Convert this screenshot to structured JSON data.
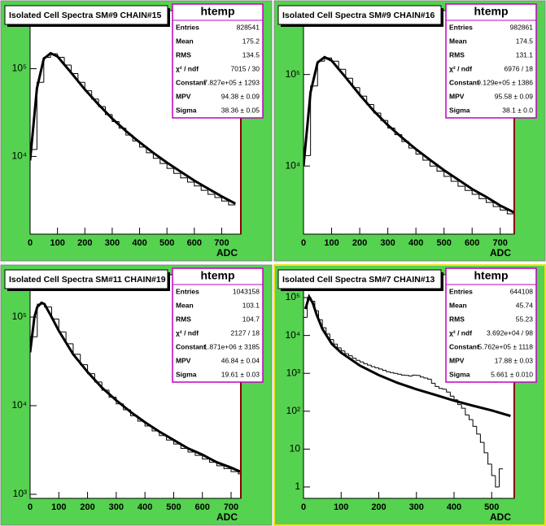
{
  "chart_data": [
    {
      "type": "histogram",
      "title": "Isolated Cell Spectra SM#9 CHAIN#15",
      "stats": {
        "title": "htemp",
        "rows": [
          [
            "Entries",
            "828541"
          ],
          [
            "Mean",
            "175.2"
          ],
          [
            "RMS",
            "134.5"
          ],
          [
            "χ² / ndf",
            "7015 / 30"
          ],
          [
            "Constant",
            "7.827e+05 ± 1293"
          ],
          [
            "MPV",
            "94.38 ± 0.09"
          ],
          [
            "Sigma",
            "38.36 ± 0.05"
          ]
        ]
      },
      "bins": [
        0,
        25,
        50,
        75,
        100,
        125,
        150,
        175,
        200,
        225,
        250,
        275,
        300,
        325,
        350,
        375,
        400,
        425,
        450,
        475,
        500,
        525,
        550,
        575,
        600,
        625,
        650,
        675,
        700,
        725,
        750
      ],
      "values": [
        12000,
        70000,
        135000,
        148000,
        135000,
        110000,
        88000,
        70000,
        56000,
        45000,
        37000,
        30000,
        25000,
        21000,
        17500,
        15000,
        12800,
        11000,
        9500,
        8300,
        7300,
        6400,
        5700,
        5100,
        4600,
        4100,
        3700,
        3400,
        3100,
        2800
      ],
      "fit": {
        "x": [
          0,
          25,
          50,
          75,
          100,
          150,
          200,
          250,
          300,
          350,
          400,
          450,
          500,
          550,
          600,
          650,
          700,
          750
        ],
        "values": [
          9000,
          60000,
          130000,
          150000,
          138000,
          90000,
          58000,
          39000,
          27000,
          19500,
          14500,
          11000,
          8500,
          6700,
          5300,
          4300,
          3500,
          2900
        ]
      },
      "xlabel": "ADC",
      "xlim": [
        0,
        770
      ],
      "ylim": [
        1300,
        460000
      ],
      "log_y": true,
      "xticks": [
        0,
        100,
        200,
        300,
        400,
        500,
        600,
        700
      ],
      "yticks": [
        {
          "value": 10000,
          "label": "10⁴"
        },
        {
          "value": 100000,
          "label": "10⁵"
        }
      ]
    },
    {
      "type": "histogram",
      "title": "Isolated Cell Spectra SM#9 CHAIN#16",
      "stats": {
        "title": "htemp",
        "rows": [
          [
            "Entries",
            "982861"
          ],
          [
            "Mean",
            "174.5"
          ],
          [
            "RMS",
            "131.1"
          ],
          [
            "χ² / ndf",
            "6976 / 18"
          ],
          [
            "Constant",
            "9.129e+05 ± 1386"
          ],
          [
            "MPV",
            "95.58 ± 0.09"
          ],
          [
            "Sigma",
            "38.1 ± 0.0"
          ]
        ]
      },
      "bins": [
        0,
        25,
        50,
        75,
        100,
        125,
        150,
        175,
        200,
        225,
        250,
        275,
        300,
        325,
        350,
        375,
        400,
        425,
        450,
        475,
        500,
        525,
        550,
        575,
        600,
        625,
        650,
        675,
        700,
        725,
        750
      ],
      "values": [
        13000,
        75000,
        140000,
        152000,
        140000,
        114000,
        91000,
        72000,
        58000,
        47000,
        38000,
        31500,
        26000,
        22000,
        18500,
        15700,
        13500,
        11600,
        10000,
        8800,
        7700,
        6800,
        6000,
        5400,
        4900,
        4400,
        4000,
        3600,
        3300,
        3000
      ],
      "fit": {
        "x": [
          0,
          25,
          50,
          75,
          100,
          150,
          200,
          250,
          300,
          350,
          400,
          450,
          500,
          550,
          600,
          650,
          700,
          750
        ],
        "values": [
          10000,
          64000,
          135000,
          155000,
          142000,
          93000,
          60000,
          40000,
          28000,
          20500,
          15300,
          11700,
          9000,
          7100,
          5600,
          4600,
          3700,
          3100
        ]
      },
      "xlabel": "ADC",
      "xlim": [
        0,
        750
      ],
      "ylim": [
        1800,
        500000
      ],
      "log_y": true,
      "xticks": [
        0,
        100,
        200,
        300,
        400,
        500,
        600,
        700
      ],
      "yticks": [
        {
          "value": 10000,
          "label": "10⁴"
        },
        {
          "value": 100000,
          "label": "10⁵"
        }
      ]
    },
    {
      "type": "histogram",
      "title": "Isolated Cell Spectra SM#11 CHAIN#19",
      "stats": {
        "title": "htemp",
        "rows": [
          [
            "Entries",
            "1043158"
          ],
          [
            "Mean",
            "103.1"
          ],
          [
            "RMS",
            "104.7"
          ],
          [
            "χ² / ndf",
            "2127 / 18"
          ],
          [
            "Constant",
            "1.871e+06 ± 3185"
          ],
          [
            "MPV",
            "46.84 ± 0.04"
          ],
          [
            "Sigma",
            "19.61 ± 0.03"
          ]
        ]
      },
      "bins": [
        0,
        25,
        50,
        75,
        100,
        125,
        150,
        175,
        200,
        225,
        250,
        275,
        300,
        325,
        350,
        375,
        400,
        425,
        450,
        475,
        500,
        525,
        550,
        575,
        600,
        625,
        650,
        675,
        700,
        725,
        750
      ],
      "values": [
        60000,
        140000,
        130000,
        95000,
        68000,
        50000,
        38000,
        29000,
        23000,
        18500,
        15000,
        12500,
        10500,
        9000,
        7700,
        6700,
        5900,
        5200,
        4600,
        4100,
        3700,
        3300,
        3000,
        2750,
        2500,
        2300,
        2100,
        1950,
        1800,
        1700
      ],
      "fit": {
        "x": [
          0,
          15,
          25,
          40,
          50,
          75,
          100,
          150,
          200,
          250,
          300,
          350,
          400,
          450,
          500,
          550,
          600,
          650,
          700,
          750
        ],
        "values": [
          40000,
          100000,
          130000,
          145000,
          140000,
          100000,
          70000,
          38000,
          24000,
          16000,
          11500,
          8500,
          6500,
          5100,
          4100,
          3300,
          2800,
          2300,
          2000,
          1700
        ]
      },
      "xlabel": "ADC",
      "xlim": [
        0,
        734
      ],
      "ylim": [
        900,
        300000
      ],
      "log_y": true,
      "xticks": [
        0,
        100,
        200,
        300,
        400,
        500,
        600,
        700
      ],
      "yticks": [
        {
          "value": 1000,
          "label": "10³"
        },
        {
          "value": 10000,
          "label": "10⁴"
        },
        {
          "value": 100000,
          "label": "10⁵"
        }
      ]
    },
    {
      "type": "histogram",
      "title": "Isolated Cell Spectra SM#7 CHAIN#13",
      "stats": {
        "title": "htemp",
        "rows": [
          [
            "Entries",
            "644108"
          ],
          [
            "Mean",
            "45.74"
          ],
          [
            "RMS",
            "55.23"
          ],
          [
            "χ² / ndf",
            "3.692e+04 / 98"
          ],
          [
            "Constant",
            "5.762e+05 ± 1118"
          ],
          [
            "MPV",
            "17.88 ± 0.03"
          ],
          [
            "Sigma",
            "5.661 ± 0.010"
          ]
        ]
      },
      "bins": [
        0,
        10,
        20,
        30,
        40,
        50,
        60,
        70,
        80,
        90,
        100,
        110,
        120,
        130,
        140,
        150,
        160,
        170,
        180,
        190,
        200,
        210,
        220,
        230,
        240,
        250,
        260,
        270,
        280,
        290,
        300,
        310,
        320,
        330,
        340,
        350,
        360,
        370,
        380,
        390,
        400,
        410,
        420,
        430,
        440,
        450,
        460,
        470,
        480,
        490,
        500,
        510,
        520,
        530
      ],
      "values": [
        30000,
        100000,
        80000,
        45000,
        26000,
        16000,
        11000,
        7800,
        5900,
        4700,
        3900,
        3300,
        2900,
        2500,
        2200,
        2000,
        1800,
        1650,
        1500,
        1400,
        1300,
        1200,
        1100,
        1050,
        1000,
        950,
        900,
        880,
        850,
        900,
        880,
        800,
        750,
        700,
        550,
        450,
        400,
        380,
        320,
        250,
        200,
        150,
        120,
        80,
        60,
        40,
        25,
        15,
        8,
        4,
        2,
        1,
        3
      ],
      "fit": {
        "x": [
          5,
          15,
          25,
          35,
          50,
          75,
          100,
          150,
          200,
          250,
          300,
          350,
          400,
          450,
          500,
          550
        ],
        "values": [
          50000,
          105000,
          70000,
          35000,
          15000,
          6000,
          3500,
          1600,
          900,
          560,
          380,
          270,
          190,
          140,
          105,
          75
        ]
      },
      "xlabel": "ADC",
      "xlim": [
        0,
        560
      ],
      "ylim": [
        0.5,
        400000
      ],
      "log_y": true,
      "xticks": [
        0,
        100,
        200,
        300,
        400,
        500
      ],
      "yticks": [
        1,
        10,
        {
          "value": 100,
          "label": "10²"
        },
        {
          "value": 1000,
          "label": "10³"
        },
        {
          "value": 10000,
          "label": "10⁴"
        },
        {
          "value": 100000,
          "label": "10⁵"
        }
      ]
    }
  ]
}
